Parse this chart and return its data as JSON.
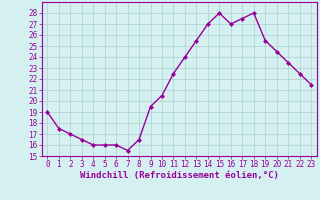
{
  "x": [
    0,
    1,
    2,
    3,
    4,
    5,
    6,
    7,
    8,
    9,
    10,
    11,
    12,
    13,
    14,
    15,
    16,
    17,
    18,
    19,
    20,
    21,
    22,
    23
  ],
  "y": [
    19,
    17.5,
    17,
    16.5,
    16,
    16,
    16,
    15.5,
    16.5,
    19.5,
    20.5,
    22.5,
    24,
    25.5,
    27,
    28,
    27,
    27.5,
    28,
    25.5,
    24.5,
    23.5,
    22.5,
    21.5
  ],
  "line_color": "#990099",
  "marker": "D",
  "marker_size": 2,
  "linewidth": 1.0,
  "xlabel": "Windchill (Refroidissement éolien,°C)",
  "xlabel_fontsize": 6.5,
  "xlim": [
    -0.5,
    23.5
  ],
  "ylim": [
    15,
    29
  ],
  "yticks": [
    15,
    16,
    17,
    18,
    19,
    20,
    21,
    22,
    23,
    24,
    25,
    26,
    27,
    28
  ],
  "xticks": [
    0,
    1,
    2,
    3,
    4,
    5,
    6,
    7,
    8,
    9,
    10,
    11,
    12,
    13,
    14,
    15,
    16,
    17,
    18,
    19,
    20,
    21,
    22,
    23
  ],
  "xtick_labels": [
    "0",
    "1",
    "2",
    "3",
    "4",
    "5",
    "6",
    "7",
    "8",
    "9",
    "10",
    "11",
    "12",
    "13",
    "14",
    "15",
    "16",
    "17",
    "18",
    "19",
    "20",
    "21",
    "22",
    "23"
  ],
  "grid_color": "#b0d0d0",
  "bg_color": "#d4f0f0",
  "tick_fontsize": 5.5,
  "tick_color": "#990099",
  "spine_color": "#990099"
}
